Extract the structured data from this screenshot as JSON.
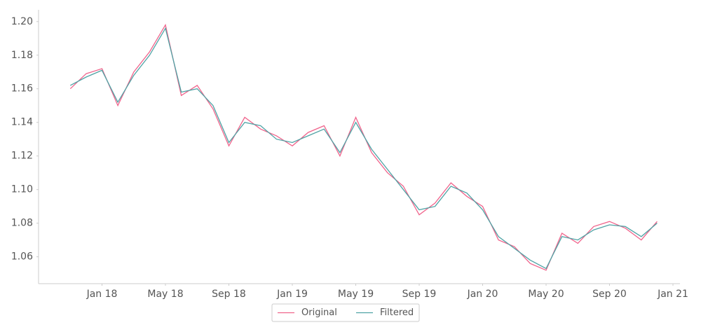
{
  "chart_data": {
    "type": "line",
    "x": [
      "2017-11",
      "2017-12",
      "2018-01",
      "2018-02",
      "2018-03",
      "2018-04",
      "2018-05",
      "2018-06",
      "2018-07",
      "2018-08",
      "2018-09",
      "2018-10",
      "2018-11",
      "2018-12",
      "2019-01",
      "2019-02",
      "2019-03",
      "2019-04",
      "2019-05",
      "2019-06",
      "2019-07",
      "2019-08",
      "2019-09",
      "2019-10",
      "2019-11",
      "2019-12",
      "2020-01",
      "2020-02",
      "2020-03",
      "2020-04",
      "2020-05",
      "2020-06",
      "2020-07",
      "2020-08",
      "2020-09",
      "2020-10",
      "2020-11",
      "2020-12"
    ],
    "series": [
      {
        "name": "Original",
        "color": "#f0648c",
        "values": [
          1.16,
          1.169,
          1.172,
          1.15,
          1.17,
          1.182,
          1.198,
          1.156,
          1.162,
          1.148,
          1.126,
          1.143,
          1.136,
          1.132,
          1.126,
          1.134,
          1.138,
          1.12,
          1.143,
          1.122,
          1.11,
          1.102,
          1.085,
          1.092,
          1.104,
          1.096,
          1.09,
          1.07,
          1.066,
          1.056,
          1.052,
          1.074,
          1.068,
          1.078,
          1.081,
          1.077,
          1.07,
          1.081
        ]
      },
      {
        "name": "Filtered",
        "color": "#4fa3a5",
        "values": [
          1.162,
          1.167,
          1.171,
          1.152,
          1.168,
          1.18,
          1.196,
          1.158,
          1.16,
          1.15,
          1.128,
          1.14,
          1.138,
          1.13,
          1.128,
          1.132,
          1.136,
          1.122,
          1.14,
          1.124,
          1.112,
          1.1,
          1.088,
          1.09,
          1.102,
          1.098,
          1.088,
          1.072,
          1.065,
          1.058,
          1.053,
          1.072,
          1.07,
          1.076,
          1.079,
          1.078,
          1.072,
          1.08
        ]
      }
    ],
    "xlim": [
      "2017-09",
      "2021-01"
    ],
    "xticks": [
      {
        "value": "2018-01",
        "label": "Jan 18"
      },
      {
        "value": "2018-05",
        "label": "May 18"
      },
      {
        "value": "2018-09",
        "label": "Sep 18"
      },
      {
        "value": "2019-01",
        "label": "Jan 19"
      },
      {
        "value": "2019-05",
        "label": "May 19"
      },
      {
        "value": "2019-09",
        "label": "Sep 19"
      },
      {
        "value": "2020-01",
        "label": "Jan 20"
      },
      {
        "value": "2020-05",
        "label": "May 20"
      },
      {
        "value": "2020-09",
        "label": "Sep 20"
      },
      {
        "value": "2021-01",
        "label": "Jan 21"
      }
    ],
    "ylim": [
      1.044,
      1.207
    ],
    "yticks": [
      1.06,
      1.08,
      {
        "value": 1.1,
        "label": "1.10"
      },
      1.12,
      1.14,
      1.16,
      1.18,
      {
        "value": 1.2,
        "label": "1.20"
      }
    ],
    "legend": "bottom"
  }
}
